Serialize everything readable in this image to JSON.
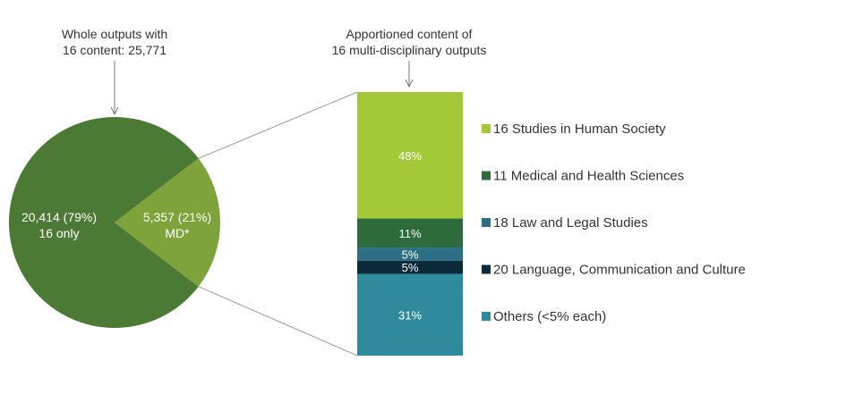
{
  "colors": {
    "pie_main": "#4a7a34",
    "pie_md": "#7ea33a",
    "connector": "#9a9a9a",
    "arrow": "#777777",
    "text_dark": "#333333",
    "text_light": "#ffffff"
  },
  "chart_data": [
    {
      "type": "pie",
      "title_lines": [
        "Whole outputs with",
        "16 content: 25,771"
      ],
      "total": 25771,
      "slices": [
        {
          "value": 20414,
          "percent": 79,
          "label_lines": [
            "20,414 (79%)",
            "16 only"
          ],
          "color": "#4a7a34"
        },
        {
          "value": 5357,
          "percent": 21,
          "label_lines": [
            "5,357 (21%)",
            "MD*"
          ],
          "color": "#7ea33a"
        }
      ]
    },
    {
      "type": "bar",
      "stacked": true,
      "title_lines": [
        "Apportioned content of",
        "16 multi-disciplinary outputs"
      ],
      "ylim": [
        0,
        100
      ],
      "segments": [
        {
          "name": "16 Studies in Human Society",
          "value": 48,
          "label": "48%",
          "color": "#a3c838"
        },
        {
          "name": "11 Medical and Health Sciences",
          "value": 11,
          "label": "11%",
          "color": "#2e6b3c"
        },
        {
          "name": "18 Law and Legal Studies",
          "value": 5,
          "label": "5%",
          "color": "#2c6f84"
        },
        {
          "name": "20 Language, Communication and Culture",
          "value": 5,
          "label": "5%",
          "color": "#0b2a3a"
        },
        {
          "name": "Others (<5% each)",
          "value": 31,
          "label": "31%",
          "color": "#2e8a9c"
        }
      ],
      "legend": [
        {
          "label": "16 Studies in Human Society",
          "color": "#a3c838"
        },
        {
          "label": "11 Medical and Health Sciences",
          "color": "#2e6b3c"
        },
        {
          "label": "18 Law and Legal Studies",
          "color": "#2c6f84"
        },
        {
          "label": "20 Language, Communication and Culture",
          "color": "#0b2a3a"
        },
        {
          "label": "Others (<5% each)",
          "color": "#2e8a9c"
        }
      ],
      "legend_position": "right"
    }
  ]
}
